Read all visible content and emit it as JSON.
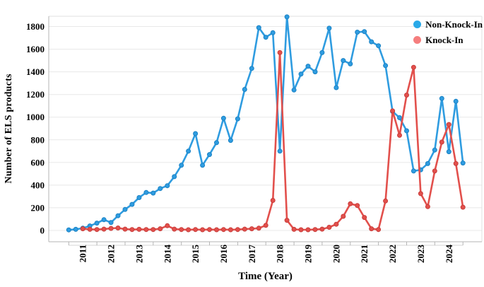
{
  "figure": {
    "background": "#ffffff"
  },
  "legend": {
    "position": "top-right",
    "items": [
      {
        "label": "Non-Knock-In",
        "dot_color": "#29a9e8"
      },
      {
        "label": "Knock-In",
        "dot_color": "#f57e7e"
      }
    ]
  },
  "chart_data": {
    "type": "line",
    "title": "",
    "xlabel": "Time (Year)",
    "ylabel": "Number of ELS products",
    "x_unit": "decimal year (quarterly points)",
    "ylim": [
      0,
      1900
    ],
    "y_ticks": [
      0,
      200,
      400,
      600,
      800,
      1000,
      1200,
      1400,
      1600,
      1800
    ],
    "x_tick_years": [
      2011,
      2012,
      2013,
      2014,
      2015,
      2016,
      2017,
      2018,
      2019,
      2020,
      2021,
      2022,
      2023,
      2024
    ],
    "grid": "horizontal",
    "legend_position": "top-right",
    "colors": {
      "non_knock_in": "#2f9ce0",
      "knock_in": "#e2504c"
    },
    "series": [
      {
        "name": "Non-Knock-In",
        "color": "#2f9ce0",
        "marker_edge": "#1a82c4",
        "x": [
          2010.5,
          2010.75,
          2011,
          2011.25,
          2011.5,
          2011.75,
          2012,
          2012.25,
          2012.5,
          2012.75,
          2013,
          2013.25,
          2013.5,
          2013.75,
          2014,
          2014.25,
          2014.5,
          2014.75,
          2015,
          2015.25,
          2015.5,
          2015.75,
          2016,
          2016.25,
          2016.5,
          2016.75,
          2017,
          2017.25,
          2017.5,
          2017.75,
          2018,
          2018.25,
          2018.5,
          2018.75,
          2019,
          2019.25,
          2019.5,
          2019.75,
          2020,
          2020.25,
          2020.5,
          2020.75,
          2021,
          2021.25,
          2021.5,
          2021.75,
          2022,
          2022.25,
          2022.5,
          2022.75,
          2023,
          2023.25,
          2023.5,
          2023.75,
          2024,
          2024.25,
          2024.5
        ],
        "values": [
          5,
          10,
          20,
          40,
          65,
          95,
          70,
          130,
          185,
          230,
          290,
          335,
          330,
          370,
          395,
          475,
          575,
          700,
          855,
          575,
          670,
          775,
          990,
          795,
          985,
          1245,
          1430,
          1790,
          1705,
          1745,
          700,
          1885,
          1240,
          1380,
          1450,
          1400,
          1570,
          1785,
          1260,
          1500,
          1470,
          1750,
          1755,
          1665,
          1630,
          1455,
          1050,
          995,
          880,
          525,
          535,
          590,
          710,
          1165,
          695,
          1140,
          595
        ]
      },
      {
        "name": "Knock-In",
        "color": "#e2504c",
        "marker_edge": "#c93d3b",
        "x": [
          2011,
          2011.25,
          2011.5,
          2011.75,
          2012,
          2012.25,
          2012.5,
          2012.75,
          2013,
          2013.25,
          2013.5,
          2013.75,
          2014,
          2014.25,
          2014.5,
          2014.75,
          2015,
          2015.25,
          2015.5,
          2015.75,
          2016,
          2016.25,
          2016.5,
          2016.75,
          2017,
          2017.25,
          2017.5,
          2017.75,
          2018,
          2018.25,
          2018.5,
          2018.75,
          2019,
          2019.25,
          2019.5,
          2019.75,
          2020,
          2020.25,
          2020.5,
          2020.75,
          2021,
          2021.25,
          2021.5,
          2021.75,
          2022,
          2022.25,
          2022.5,
          2022.75,
          2023,
          2023.25,
          2023.5,
          2023.75,
          2024,
          2024.25,
          2024.5
        ],
        "values": [
          15,
          10,
          8,
          12,
          18,
          22,
          12,
          8,
          10,
          8,
          8,
          15,
          42,
          12,
          8,
          6,
          8,
          6,
          8,
          6,
          8,
          6,
          8,
          12,
          15,
          20,
          45,
          265,
          1570,
          90,
          10,
          6,
          6,
          8,
          12,
          28,
          55,
          125,
          235,
          220,
          115,
          15,
          8,
          260,
          1055,
          840,
          1195,
          1440,
          325,
          210,
          525,
          780,
          935,
          590,
          205
        ]
      }
    ]
  }
}
